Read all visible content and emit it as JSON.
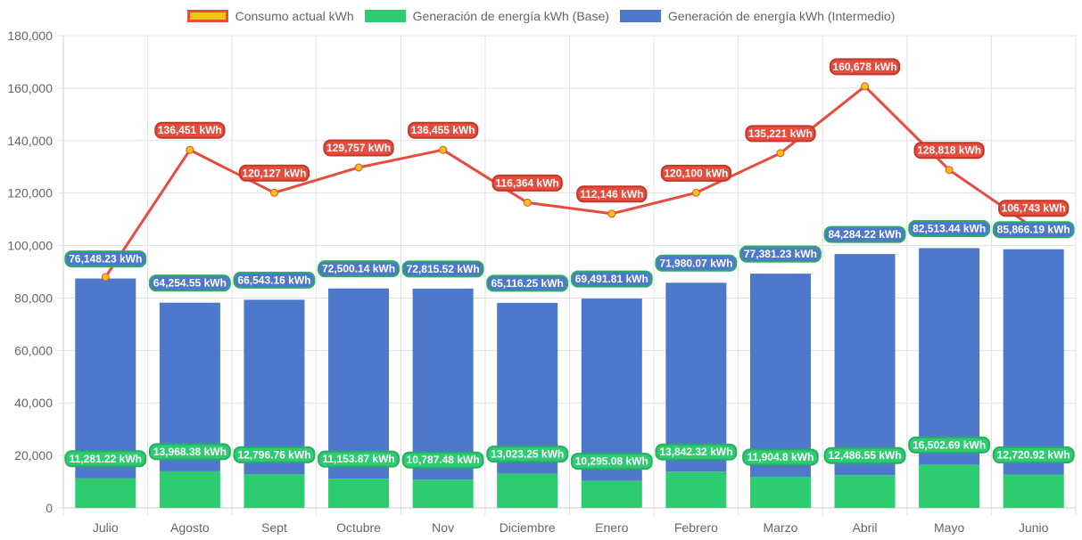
{
  "chart_data": {
    "type": "bar",
    "title": "",
    "xlabel": "",
    "ylabel": "",
    "ylim": [
      0,
      180000
    ],
    "yticks": [
      0,
      20000,
      40000,
      60000,
      80000,
      100000,
      120000,
      140000,
      160000,
      180000
    ],
    "ytick_labels": [
      "0",
      "20,000",
      "40,000",
      "60,000",
      "80,000",
      "100,000",
      "120,000",
      "140,000",
      "160,000",
      "180,000"
    ],
    "grid": true,
    "stacked": true,
    "legend_position": "top-center",
    "categories": [
      "Julio",
      "Agosto",
      "Sept",
      "Octubre",
      "Nov",
      "Diciembre",
      "Enero",
      "Febrero",
      "Marzo",
      "Abril",
      "Mayo",
      "Junio"
    ],
    "series": [
      {
        "name": "Consumo actual kWh",
        "type": "line",
        "color": "#e74c3c",
        "point_color": "#f1c40f",
        "values": [
          88000,
          136451,
          120127,
          129757,
          136455,
          116364,
          112146,
          120100,
          135221,
          160678,
          128818,
          106743
        ],
        "labels": [
          "",
          "136,451 kWh",
          "120,127 kWh",
          "129,757 kWh",
          "136,455 kWh",
          "116,364 kWh",
          "112,146 kWh",
          "120,100 kWh",
          "135,221 kWh",
          "160,678 kWh",
          "128,818 kWh",
          "106,743 kWh"
        ]
      },
      {
        "name": "Generación de energía kWh (Base)",
        "type": "bar",
        "color": "#2ecc71",
        "values": [
          11281.22,
          13968.38,
          12796.76,
          11153.87,
          10787.48,
          13023.25,
          10295.08,
          13842.32,
          11904.8,
          12486.55,
          16502.69,
          12720.92
        ],
        "labels": [
          "11,281.22 kWh",
          "13,968.38 kWh",
          "12,796.76 kWh",
          "11,153.87 kWh",
          "10,787.48 kWh",
          "13,023.25 kWh",
          "10,295.08 kWh",
          "13,842.32 kWh",
          "11,904.8 kWh",
          "12,486.55 kWh",
          "16,502.69 kWh",
          "12,720.92 kWh"
        ]
      },
      {
        "name": "Generación de energía kWh (Intermedio)",
        "type": "bar",
        "color": "#4e78cc",
        "values": [
          76148.23,
          64254.55,
          66543.16,
          72500.14,
          72815.52,
          65116.25,
          69491.81,
          71980.07,
          77381.23,
          84284.22,
          82513.44,
          85866.19
        ],
        "labels": [
          "76,148.23 kWh",
          "64,254.55 kWh",
          "66,543.16 kWh",
          "72,500.14 kWh",
          "72,815.52 kWh",
          "65,116.25 kWh",
          "69,491.81 kWh",
          "71,980.07 kWh",
          "77,381.23 kWh",
          "84,284.22 kWh",
          "82,513.44 kWh",
          "85,866.19 kWh"
        ]
      }
    ]
  },
  "legend": {
    "items": [
      {
        "label": "Consumo actual kWh",
        "fill": "#f1c40f",
        "border": "#e74c3c"
      },
      {
        "label": "Generación de energía kWh (Base)",
        "fill": "#2ecc71",
        "border": "#2ecc71"
      },
      {
        "label": "Generación de energía kWh (Intermedio)",
        "fill": "#4e78cc",
        "border": "#4e78cc"
      }
    ]
  }
}
